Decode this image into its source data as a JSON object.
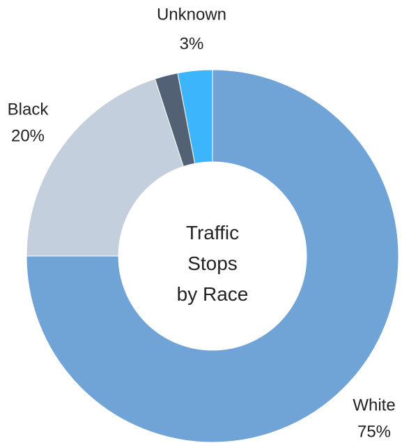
{
  "chart_data": {
    "type": "donut",
    "title": "Traffic Stops by Race",
    "categories": [
      "White",
      "Black",
      null,
      "Unknown"
    ],
    "values": [
      75,
      20,
      2,
      3
    ],
    "value_labels": [
      "75%",
      "20%",
      null,
      "3%"
    ],
    "colors": [
      "#70a3d6",
      "#c3cfdc",
      "#526174",
      "#3db5fc"
    ]
  }
}
